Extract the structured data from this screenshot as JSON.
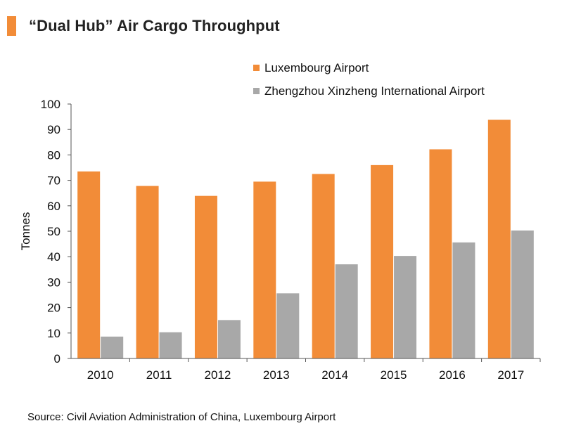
{
  "colors": {
    "accent": "#F28C38",
    "luxembourg": "#F28C38",
    "zhengzhou": "#A8A8A8"
  },
  "header": {
    "title": "“Dual Hub” Air Cargo Throughput"
  },
  "source_text": "Source: Civil Aviation Administration of China, Luxembourg Airport",
  "chart_data": {
    "type": "bar",
    "title": "“Dual Hub” Air Cargo Throughput",
    "xlabel": "",
    "ylabel": "Tonnes",
    "ylim": [
      0,
      100
    ],
    "yticks": [
      0,
      10,
      20,
      30,
      40,
      50,
      60,
      70,
      80,
      90,
      100
    ],
    "grid": false,
    "legend_position": "top-right",
    "categories": [
      "2010",
      "2011",
      "2012",
      "2013",
      "2014",
      "2015",
      "2016",
      "2017"
    ],
    "series": [
      {
        "name": "Luxembourg Airport",
        "color": "#F28C38",
        "values": [
          73.5,
          67.8,
          63.9,
          69.5,
          72.5,
          76.0,
          82.2,
          93.8
        ]
      },
      {
        "name": "Zhengzhou Xinzheng International Airport",
        "color": "#A8A8A8",
        "values": [
          8.6,
          10.3,
          15.1,
          25.6,
          37.0,
          40.3,
          45.6,
          50.3
        ]
      }
    ]
  }
}
